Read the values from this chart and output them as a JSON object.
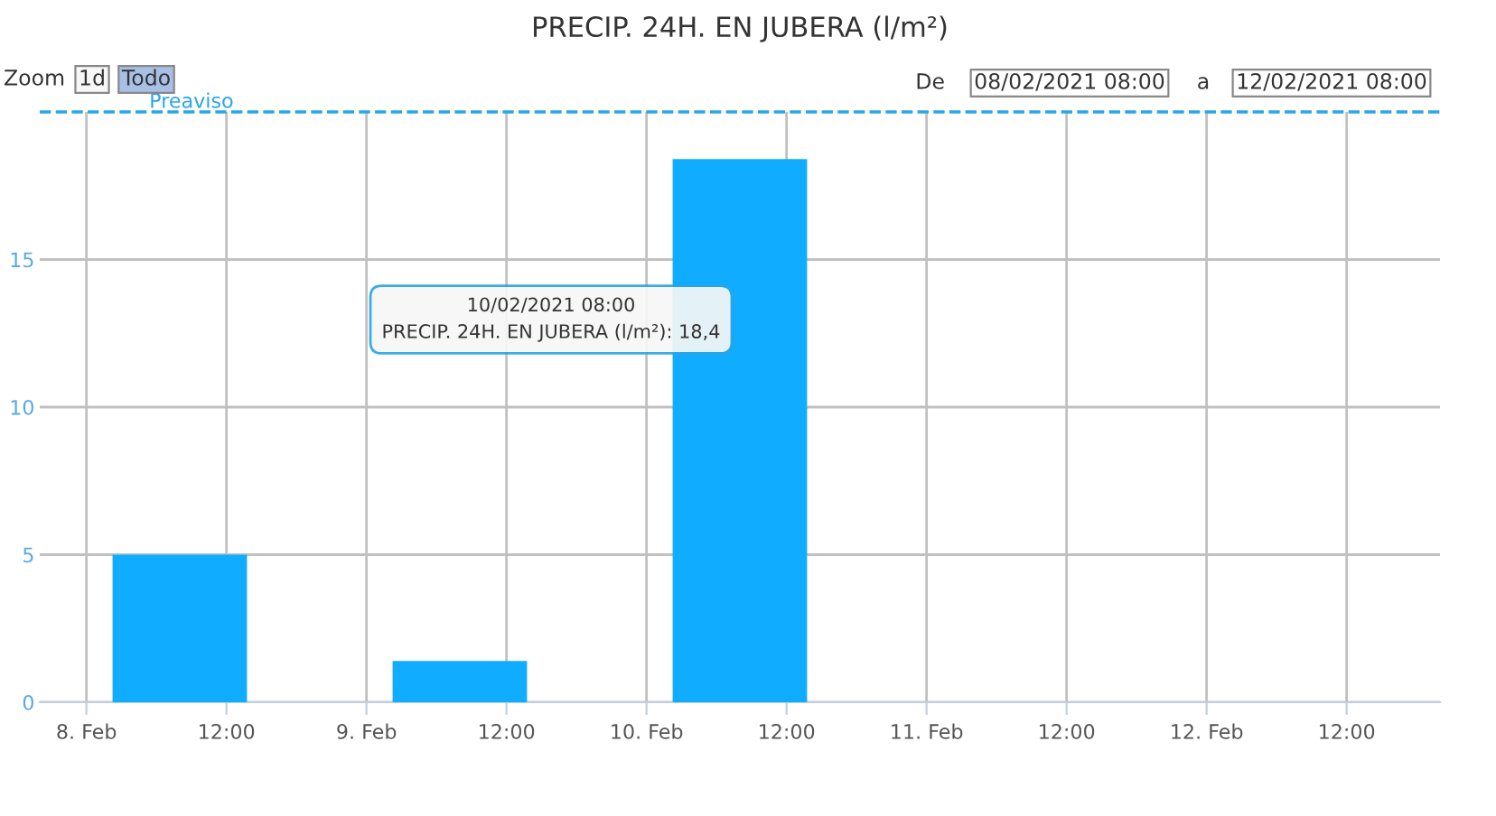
{
  "chart_data": {
    "type": "bar",
    "title": "PRECIP. 24H. EN JUBERA (l/m²)",
    "x": [
      "2021-02-08T08:00",
      "2021-02-09T08:00",
      "2021-02-10T08:00"
    ],
    "series": [
      {
        "color": "#10acff",
        "values": [
          5.0,
          1.4,
          18.4
        ]
      }
    ],
    "xlim": [
      "2021-02-07T20:00",
      "2021-02-12T20:00"
    ],
    "xticks": [
      {
        "value": "2021-02-08T00:00",
        "label": "8. Feb"
      },
      {
        "value": "2021-02-08T12:00",
        "label": "12:00"
      },
      {
        "value": "2021-02-09T00:00",
        "label": "9. Feb"
      },
      {
        "value": "2021-02-09T12:00",
        "label": "12:00"
      },
      {
        "value": "2021-02-10T00:00",
        "label": "10. Feb"
      },
      {
        "value": "2021-02-10T12:00",
        "label": "12:00"
      },
      {
        "value": "2021-02-11T00:00",
        "label": "11. Feb"
      },
      {
        "value": "2021-02-11T12:00",
        "label": "12:00"
      },
      {
        "value": "2021-02-12T00:00",
        "label": "12. Feb"
      },
      {
        "value": "2021-02-12T12:00",
        "label": "12:00"
      }
    ],
    "ylim": [
      0,
      20
    ],
    "yticks": [
      0,
      5,
      10,
      15
    ],
    "grid": true,
    "legend": false,
    "ref_lines": [
      {
        "axis": "y",
        "value": 20,
        "label": "Preaviso",
        "color": "#2aa5e6",
        "line_style": "dashed"
      }
    ],
    "annotations": [
      "Zoom",
      "1d",
      "Todo",
      "De",
      "08/02/2021 08:00",
      "a",
      "12/02/2021 08:00",
      "10/02/2021 08:00\nPRECIP. 24H. EN JUBERA (l/m²): 18,4"
    ]
  }
}
